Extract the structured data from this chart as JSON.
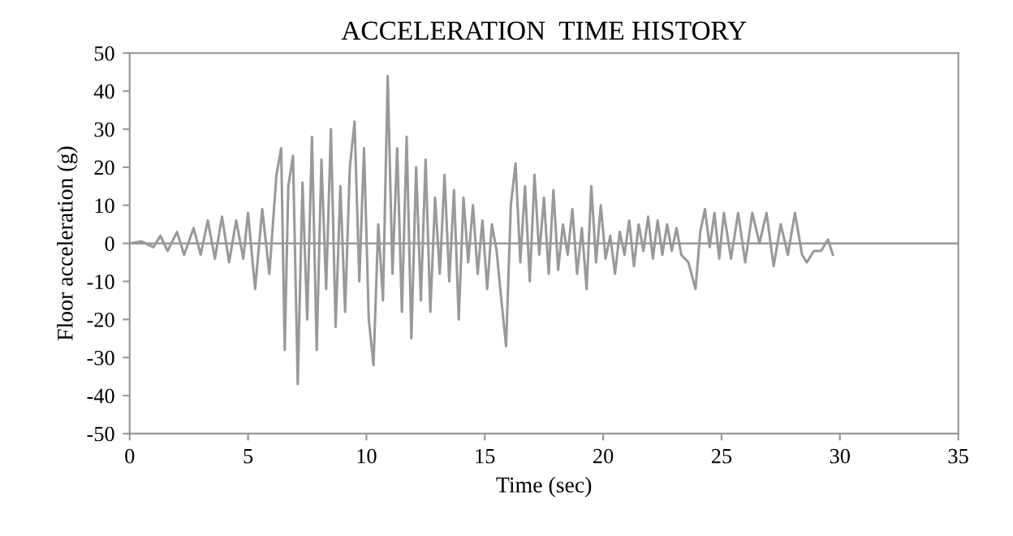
{
  "chart_data": {
    "type": "line",
    "title": "ACCELERATION  TIME HISTORY",
    "xlabel": "Time (sec)",
    "ylabel": "Floor acceleration (g)",
    "series": [
      {
        "color": "#999999",
        "x": [
          0,
          0.5,
          1,
          1.3,
          1.6,
          2,
          2.3,
          2.7,
          3,
          3.3,
          3.6,
          3.9,
          4.2,
          4.5,
          4.8,
          5.0,
          5.3,
          5.6,
          5.9,
          6.2,
          6.4,
          6.55,
          6.7,
          6.9,
          7.1,
          7.3,
          7.5,
          7.7,
          7.9,
          8.1,
          8.3,
          8.5,
          8.7,
          8.9,
          9.1,
          9.3,
          9.5,
          9.7,
          9.9,
          10.1,
          10.3,
          10.5,
          10.7,
          10.9,
          11.1,
          11.3,
          11.5,
          11.7,
          11.9,
          12.1,
          12.3,
          12.5,
          12.7,
          12.9,
          13.1,
          13.3,
          13.5,
          13.7,
          13.9,
          14.1,
          14.3,
          14.5,
          14.7,
          14.9,
          15.1,
          15.3,
          15.5,
          15.7,
          15.9,
          16.1,
          16.3,
          16.5,
          16.7,
          16.9,
          17.1,
          17.3,
          17.5,
          17.7,
          17.9,
          18.1,
          18.3,
          18.5,
          18.7,
          18.9,
          19.1,
          19.3,
          19.5,
          19.7,
          19.9,
          20.1,
          20.3,
          20.5,
          20.7,
          20.9,
          21.1,
          21.3,
          21.5,
          21.7,
          21.9,
          22.1,
          22.3,
          22.5,
          22.7,
          22.9,
          23.1,
          23.3,
          23.6,
          23.9,
          24.1,
          24.3,
          24.5,
          24.7,
          24.9,
          25.1,
          25.4,
          25.7,
          26.0,
          26.3,
          26.6,
          26.9,
          27.2,
          27.5,
          27.8,
          28.1,
          28.4,
          28.6,
          28.9,
          29.2,
          29.5,
          29.7
        ],
        "values": [
          0,
          0.5,
          -1,
          2,
          -2,
          3,
          -3,
          4,
          -3,
          6,
          -4,
          7,
          -5,
          6,
          -4,
          8,
          -12,
          9,
          -8,
          18,
          25,
          -28,
          15,
          23,
          -37,
          16,
          -20,
          28,
          -28,
          22,
          -12,
          30,
          -22,
          15,
          -18,
          20,
          32,
          -10,
          25,
          -20,
          -32,
          5,
          -15,
          44,
          -8,
          25,
          -18,
          28,
          -25,
          20,
          -15,
          22,
          -18,
          12,
          -8,
          18,
          -10,
          14,
          -20,
          12,
          -5,
          10,
          -8,
          6,
          -12,
          5,
          -2,
          -15,
          -27,
          10,
          21,
          -5,
          15,
          -10,
          18,
          -3,
          12,
          -8,
          14,
          -7,
          5,
          -3,
          9,
          -8,
          4,
          -12,
          15,
          -5,
          10,
          -4,
          2,
          -8,
          3,
          -3,
          6,
          -6,
          5,
          -2,
          7,
          -4,
          6,
          -3,
          5,
          -2,
          4,
          -3,
          -5,
          -12,
          3,
          9,
          -1,
          8,
          -4,
          8,
          -4,
          8,
          -5,
          8,
          0,
          8,
          -6,
          5,
          -3,
          8,
          -3,
          -5,
          -2,
          -2,
          1,
          -3
        ]
      }
    ],
    "xlim": [
      0,
      35
    ],
    "ylim": [
      -50,
      50
    ],
    "xticks": [
      0,
      5,
      10,
      15,
      20,
      25,
      30,
      35
    ],
    "yticks": [
      -50,
      -40,
      -30,
      -20,
      -10,
      0,
      10,
      20,
      30,
      40,
      50
    ],
    "ref_lines": [
      {
        "axis": "y",
        "value": 0,
        "color": "#999999"
      }
    ],
    "grid": false,
    "legend": false,
    "marker": "none",
    "line_style": "solid"
  }
}
